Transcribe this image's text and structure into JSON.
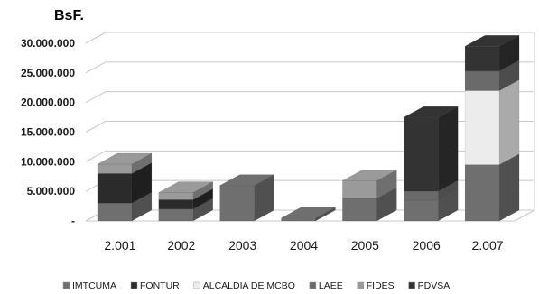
{
  "chart_data": {
    "type": "bar",
    "stacked": true,
    "style": "3d",
    "unit_label": "BsF.",
    "categories": [
      "2.001",
      "2002",
      "2003",
      "2004",
      "2005",
      "2006",
      "2.007"
    ],
    "ylim": [
      0,
      30000000
    ],
    "yticks": [
      0,
      5000000,
      10000000,
      15000000,
      20000000,
      25000000,
      30000000
    ],
    "ytick_labels": [
      "-",
      "5.000.000",
      "10.000.000",
      "15.000.000",
      "20.000.000",
      "25.000.000",
      "30.000.000"
    ],
    "grid": true,
    "legend_position": "bottom",
    "series": [
      {
        "name": "IMTCUMA",
        "color": "#6f6f6f",
        "values": [
          3000000,
          2000000,
          6000000,
          500000,
          3800000,
          3500000,
          9500000
        ]
      },
      {
        "name": "FONTUR",
        "color": "#2b2b2b",
        "values": [
          5000000,
          1600000,
          0,
          0,
          0,
          0,
          0
        ]
      },
      {
        "name": "ALCALDIA DE MCBO",
        "color": "#ececec",
        "values": [
          0,
          0,
          0,
          0,
          0,
          0,
          12500000
        ]
      },
      {
        "name": "LAEE",
        "color": "#6a6a6a",
        "values": [
          0,
          0,
          0,
          0,
          0,
          1500000,
          3300000
        ]
      },
      {
        "name": "FIDES",
        "color": "#9a9a9a",
        "values": [
          1600000,
          1200000,
          0,
          0,
          3000000,
          0,
          0
        ]
      },
      {
        "name": "PDVSA",
        "color": "#333333",
        "values": [
          0,
          0,
          0,
          0,
          0,
          12500000,
          4200000
        ]
      }
    ]
  }
}
